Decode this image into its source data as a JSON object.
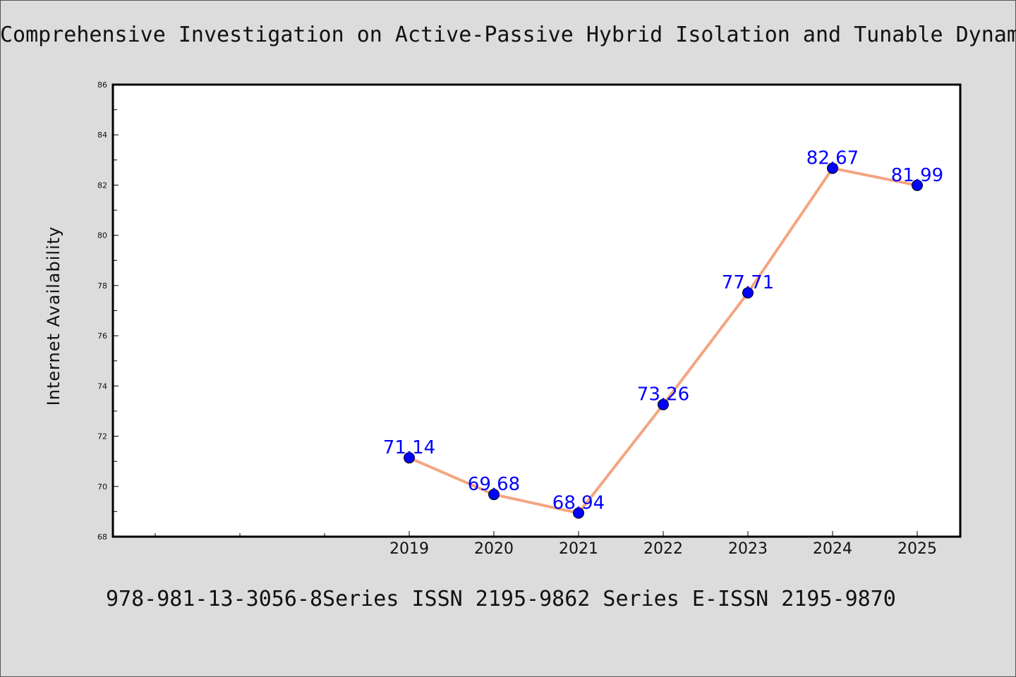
{
  "chart_data": {
    "type": "line",
    "title": "Comprehensive Investigation on Active-Passive Hybrid Isolation and Tunable Dynam",
    "xlabel": "",
    "ylabel": "Internet Availability",
    "categories": [
      "2019",
      "2020",
      "2021",
      "2022",
      "2023",
      "2024",
      "2025"
    ],
    "series": [
      {
        "values": [
          71.14,
          69.68,
          68.94,
          73.26,
          77.71,
          82.67,
          81.99
        ]
      }
    ],
    "data_labels": [
      "71.14",
      "69.68",
      "68.94",
      "73.26",
      "77.71",
      "82.67",
      "81.99"
    ],
    "ylim": [
      68,
      86
    ],
    "y_ticks": [
      "68",
      "70",
      "72",
      "74",
      "76",
      "78",
      "80",
      "82",
      "84",
      "86"
    ],
    "grid": false,
    "legend": "none",
    "colors": {
      "line": "#f4a582",
      "marker": "#0000ff",
      "label": "#0000ff",
      "background": "#dcdcdc",
      "plot_bg": "#ffffff"
    }
  },
  "footer": "978-981-13-3056-8Series ISSN 2195-9862 Series E-ISSN 2195-9870"
}
